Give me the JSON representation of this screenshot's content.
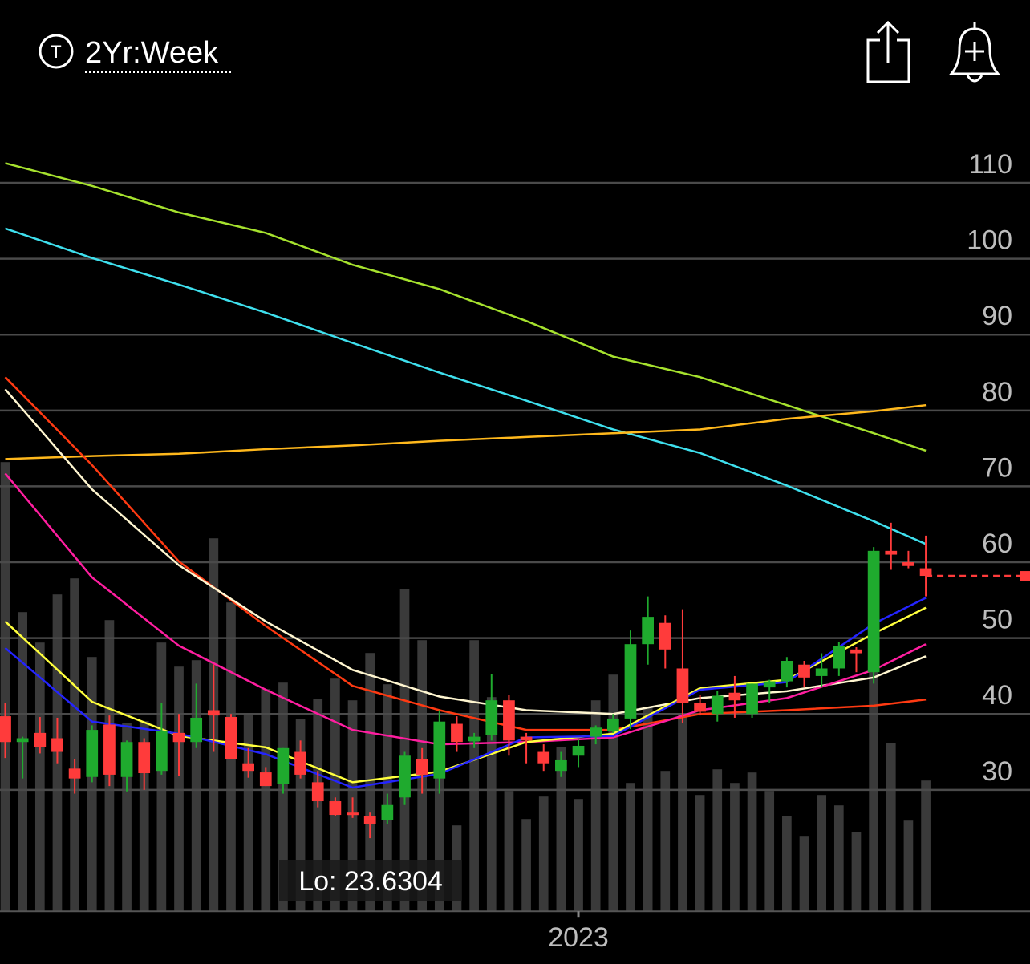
{
  "header": {
    "range": "2Yr:Week"
  },
  "chart_data": {
    "type": "candlestick",
    "xlim": [
      -0.3,
      59
    ],
    "ylim": [
      14,
      120
    ],
    "yticks": [
      30,
      40,
      50,
      60,
      70,
      80,
      90,
      100,
      110
    ],
    "xticks": [
      {
        "value": 33,
        "label": "2023"
      }
    ],
    "grid": true,
    "up_color": "#1faa2e",
    "down_color": "#ff3b3b",
    "open": [
      39.7,
      36.3,
      37.5,
      36.8,
      32.8,
      31.7,
      38.6,
      31.7,
      36.3,
      32.5,
      37.5,
      36.3,
      40.5,
      39.6,
      33.5,
      32.3,
      30.8,
      35.0,
      31.0,
      28.5,
      27.0,
      26.5,
      26.0,
      29.0,
      34.0,
      31.5,
      38.7,
      36.4,
      37.2,
      41.8,
      37.0,
      35.0,
      32.5,
      34.5,
      37.0,
      37.8,
      39.4,
      49.2,
      52.0,
      46.0,
      41.5,
      40.0,
      42.8,
      40.0,
      43.5,
      44.3,
      46.5,
      45.0,
      46.0,
      48.5,
      45.5,
      61.5,
      60.0,
      59.2
    ],
    "high": [
      41.4,
      37.0,
      39.6,
      39.5,
      34.0,
      38.5,
      39.8,
      36.5,
      36.8,
      41.4,
      40.0,
      44.0,
      46.5,
      40.0,
      35.5,
      33.0,
      35.5,
      36.5,
      32.5,
      29.0,
      29.0,
      27.0,
      29.5,
      35.0,
      35.5,
      40.5,
      39.7,
      37.5,
      45.3,
      42.5,
      37.5,
      36.0,
      35.0,
      36.6,
      38.5,
      40.0,
      51.0,
      55.5,
      53.0,
      53.8,
      42.5,
      43.0,
      45.0,
      44.0,
      44.5,
      47.5,
      47.0,
      48.0,
      49.5,
      48.8,
      62.0,
      65.2,
      61.5,
      63.5
    ],
    "low": [
      34.2,
      31.5,
      34.8,
      33.5,
      29.5,
      31.0,
      30.5,
      29.8,
      30.0,
      32.0,
      31.8,
      35.5,
      35.0,
      34.0,
      31.6,
      30.5,
      29.5,
      31.5,
      27.7,
      26.5,
      26.3,
      23.6304,
      25.5,
      28.0,
      29.5,
      29.5,
      35.0,
      35.5,
      36.5,
      34.5,
      33.5,
      32.5,
      31.7,
      33.0,
      36.0,
      37.5,
      38.0,
      46.5,
      46.0,
      38.8,
      39.8,
      39.0,
      39.5,
      39.5,
      41.5,
      43.5,
      43.5,
      43.5,
      45.0,
      45.5,
      44.0,
      59.0,
      59.2,
      55.5
    ],
    "close": [
      36.3,
      36.8,
      35.6,
      35.0,
      31.5,
      37.9,
      32.0,
      36.3,
      32.2,
      37.8,
      36.3,
      39.5,
      39.8,
      34.0,
      32.5,
      30.5,
      35.5,
      32.0,
      28.5,
      26.7,
      26.8,
      25.5,
      28.0,
      34.5,
      32.0,
      39.0,
      36.3,
      37.0,
      41.8,
      36.5,
      36.5,
      33.5,
      33.9,
      35.8,
      38.2,
      39.4,
      49.2,
      52.8,
      48.5,
      41.5,
      40.3,
      42.4,
      41.8,
      44.0,
      44.3,
      47.0,
      44.8,
      46.0,
      49.0,
      48.0,
      61.5,
      61.0,
      59.5,
      58.2
    ],
    "volume": [
      560,
      373,
      335,
      395,
      415,
      317,
      363,
      235,
      237,
      335,
      305,
      313,
      465,
      385,
      245,
      277,
      285,
      240,
      265,
      290,
      263,
      322,
      283,
      402,
      338,
      190,
      107,
      338,
      267,
      150,
      115,
      143,
      205,
      140,
      263,
      295,
      160,
      255,
      175,
      245,
      145,
      177,
      160,
      173,
      150,
      119,
      93,
      145,
      132,
      99,
      320,
      210,
      113,
      163
    ],
    "volume_lim": [
      0,
      600
    ],
    "volume_color": "#3a3a3a",
    "last_price": 58.2,
    "annotation": "Lo: 23.6304",
    "ma_x": [
      0,
      5,
      10,
      15,
      20,
      25,
      30,
      35,
      40,
      45,
      50,
      53
    ],
    "series": [
      {
        "color": "#a6e22e",
        "values": [
          112.6,
          109.6,
          106.1,
          103.4,
          99.2,
          96.0,
          91.8,
          87.1,
          84.4,
          80.7,
          77.0,
          74.7
        ]
      },
      {
        "color": "#3fe0ee",
        "values": [
          104.0,
          100.1,
          96.6,
          92.9,
          88.9,
          85.0,
          81.3,
          77.5,
          74.4,
          70.1,
          65.4,
          62.4
        ]
      },
      {
        "color": "#ffb81c",
        "values": [
          73.6,
          74.0,
          74.3,
          74.9,
          75.4,
          76.0,
          76.5,
          77.0,
          77.5,
          78.9,
          79.9,
          80.7
        ]
      },
      {
        "color": "#ff3a12",
        "values": [
          84.4,
          72.8,
          60.1,
          51.6,
          43.7,
          40.5,
          37.9,
          37.9,
          40.0,
          40.5,
          41.1,
          41.9
        ]
      },
      {
        "color": "#fff6d0",
        "values": [
          82.8,
          69.6,
          59.6,
          52.2,
          45.8,
          42.3,
          40.5,
          40.0,
          42.1,
          43.0,
          44.8,
          47.6
        ]
      },
      {
        "color": "#ff1ea0",
        "values": [
          71.7,
          58.0,
          49.0,
          43.2,
          37.9,
          36.0,
          36.3,
          36.9,
          40.5,
          42.1,
          45.8,
          49.2
        ]
      },
      {
        "color": "#ffff3c",
        "values": [
          52.2,
          41.6,
          37.1,
          35.6,
          31.0,
          32.4,
          36.3,
          37.4,
          43.4,
          44.5,
          50.6,
          54.0
        ]
      },
      {
        "color": "#2424ff",
        "values": [
          48.7,
          39.0,
          37.4,
          34.7,
          30.3,
          32.1,
          36.9,
          37.1,
          43.2,
          44.2,
          51.9,
          55.3
        ]
      }
    ]
  }
}
